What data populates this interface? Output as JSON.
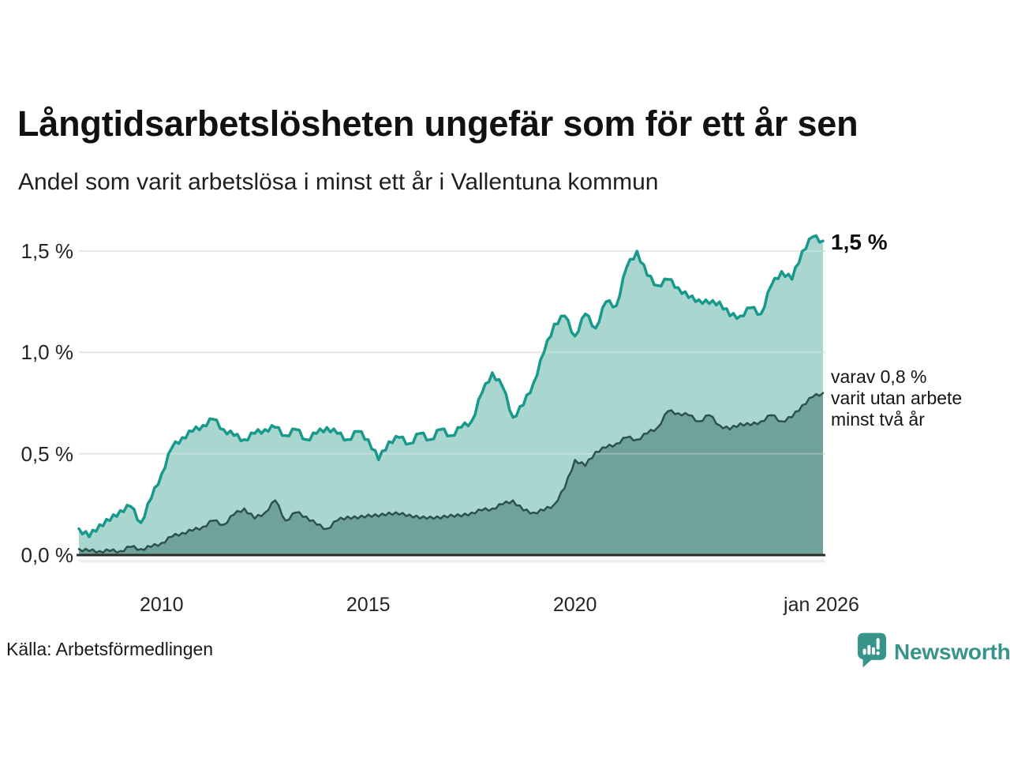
{
  "title": "Långtidsarbetslösheten ungefär som för ett år sen",
  "subtitle": "Andel som varit arbetslösa i minst ett år i Vallentuna kommun",
  "source": "Källa: Arbetsförmedlingen",
  "branding": {
    "name": "Newsworthy"
  },
  "annotations": {
    "latest_total": "1,5 %",
    "two_year_lines": [
      "varav 0,8 %",
      "varit utan arbete",
      "minst två år"
    ]
  },
  "colors": {
    "line_total": "#18998b",
    "fill_total": "#a9d6cf",
    "line_two_year": "#2d524d",
    "fill_two_year": "#6fa29b",
    "gridline": "#e0e0e0",
    "axis": "#2b2b2b",
    "text": "#1a1a1a",
    "brand_teal": "#37948a"
  },
  "chart_data": {
    "type": "area",
    "title": "Långtidsarbetslösheten ungefär som för ett år sen",
    "subtitle": "Andel som varit arbetslösa i minst ett år i Vallentuna kommun",
    "unit": "%",
    "x_start_year": 2008.0,
    "x_end_year": 2026.0,
    "x_step_years": 0.25,
    "ylim": [
      0,
      1.62
    ],
    "grid": "horizontal",
    "legend_position": "none",
    "y_ticks": [
      {
        "label": "0,0 %",
        "value": 0.0
      },
      {
        "label": "0,5 %",
        "value": 0.5
      },
      {
        "label": "1,0 %",
        "value": 1.0
      },
      {
        "label": "1,5 %",
        "value": 1.5
      }
    ],
    "x_ticks": [
      {
        "label": "2010",
        "year": 2010
      },
      {
        "label": "2015",
        "year": 2015
      },
      {
        "label": "2020",
        "year": 2020
      },
      {
        "label": "jan 2026",
        "year": 2026
      }
    ],
    "series": [
      {
        "name": "Andel som varit arbetslösa i minst ett år",
        "latest_label": "1,5 %",
        "values": [
          0.13,
          0.09,
          0.15,
          0.17,
          0.22,
          0.24,
          0.16,
          0.28,
          0.4,
          0.53,
          0.58,
          0.61,
          0.64,
          0.67,
          0.62,
          0.59,
          0.57,
          0.6,
          0.62,
          0.63,
          0.59,
          0.62,
          0.57,
          0.6,
          0.63,
          0.6,
          0.57,
          0.61,
          0.57,
          0.47,
          0.56,
          0.58,
          0.55,
          0.6,
          0.57,
          0.62,
          0.59,
          0.63,
          0.66,
          0.8,
          0.9,
          0.83,
          0.68,
          0.74,
          0.85,
          1.0,
          1.14,
          1.18,
          1.08,
          1.19,
          1.12,
          1.25,
          1.23,
          1.42,
          1.5,
          1.38,
          1.33,
          1.36,
          1.32,
          1.27,
          1.26,
          1.24,
          1.25,
          1.18,
          1.18,
          1.22,
          1.19,
          1.33,
          1.4,
          1.36,
          1.5,
          1.57,
          1.55
        ]
      },
      {
        "name": "varav varit utan arbete minst två år",
        "latest_label": "0,8 %",
        "values": [
          0.03,
          0.02,
          0.02,
          0.02,
          0.02,
          0.04,
          0.03,
          0.04,
          0.06,
          0.09,
          0.11,
          0.12,
          0.14,
          0.17,
          0.15,
          0.2,
          0.23,
          0.18,
          0.21,
          0.27,
          0.17,
          0.21,
          0.19,
          0.15,
          0.13,
          0.17,
          0.19,
          0.18,
          0.2,
          0.19,
          0.21,
          0.2,
          0.2,
          0.18,
          0.19,
          0.18,
          0.2,
          0.19,
          0.21,
          0.22,
          0.23,
          0.25,
          0.27,
          0.22,
          0.21,
          0.22,
          0.25,
          0.33,
          0.47,
          0.44,
          0.51,
          0.53,
          0.55,
          0.58,
          0.57,
          0.6,
          0.63,
          0.71,
          0.7,
          0.69,
          0.66,
          0.69,
          0.64,
          0.62,
          0.65,
          0.64,
          0.66,
          0.69,
          0.66,
          0.68,
          0.74,
          0.78,
          0.8
        ]
      }
    ]
  }
}
